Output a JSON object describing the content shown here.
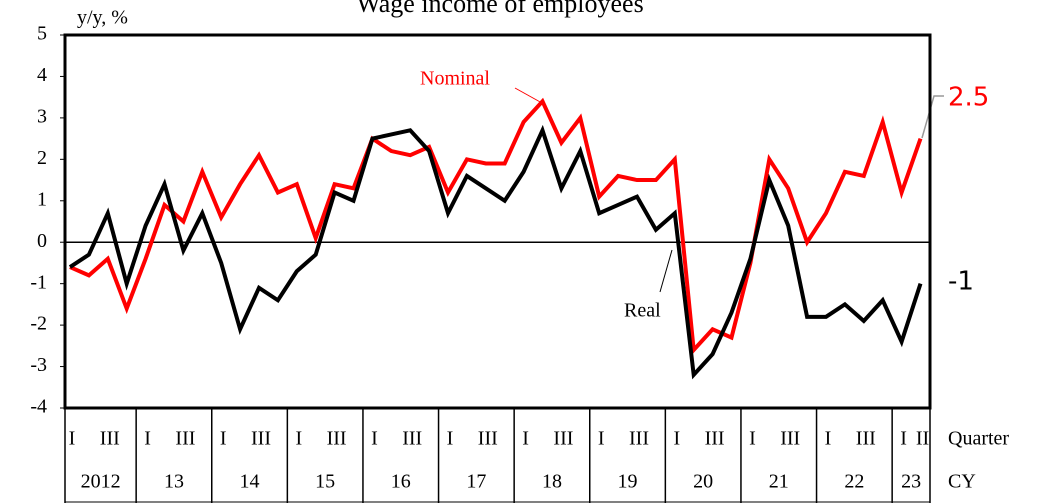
{
  "chart_data": {
    "type": "line",
    "title": "Wage income of employees",
    "y_label": "y/y, %",
    "categories": [
      "I",
      null,
      "III",
      null,
      "I",
      null,
      "III",
      null,
      "I",
      null,
      "III",
      null,
      "I",
      null,
      "III",
      null,
      "I",
      null,
      "III",
      null,
      "I",
      null,
      "III",
      null,
      "I",
      null,
      "III",
      null,
      "I",
      null,
      "III",
      null,
      "I",
      null,
      "III",
      null,
      "I",
      null,
      "III",
      null,
      "I",
      null,
      "III",
      null,
      "I",
      "II"
    ],
    "years": [
      "2012",
      "13",
      "14",
      "15",
      "16",
      "17",
      "18",
      "19",
      "20",
      "21",
      "22",
      "23"
    ],
    "x_label": "Quarter",
    "year_label": "CY",
    "series": [
      {
        "name": "Nominal",
        "color": "#ff0000",
        "values": [
          -0.6,
          -0.8,
          -0.4,
          -1.6,
          -0.4,
          0.9,
          0.5,
          1.7,
          0.6,
          1.4,
          2.1,
          1.2,
          1.4,
          0.1,
          1.4,
          1.3,
          2.5,
          2.2,
          2.1,
          2.3,
          1.2,
          2.0,
          1.9,
          1.9,
          2.9,
          3.4,
          2.4,
          3.0,
          1.1,
          1.6,
          1.5,
          1.5,
          2.0,
          -2.6,
          -2.1,
          -2.3,
          -0.5,
          2.0,
          1.3,
          0.0,
          0.7,
          1.7,
          1.6,
          2.9,
          1.2,
          2.5
        ]
      },
      {
        "name": "Real",
        "color": "#000000",
        "values": [
          -0.6,
          -0.3,
          0.7,
          -1.0,
          0.4,
          1.4,
          -0.2,
          0.7,
          -0.5,
          -2.1,
          -1.1,
          -1.4,
          -0.7,
          -0.3,
          1.2,
          1.0,
          2.5,
          2.6,
          2.7,
          2.2,
          0.7,
          1.6,
          1.3,
          1.0,
          1.7,
          2.7,
          1.3,
          2.2,
          0.7,
          0.9,
          1.1,
          0.3,
          0.7,
          -3.2,
          -2.7,
          -1.7,
          -0.4,
          1.5,
          0.4,
          -1.8,
          -1.8,
          -1.5,
          -1.9,
          -1.4,
          -2.4,
          -1.0
        ]
      }
    ],
    "ylim": [
      -4,
      5
    ],
    "yticks": [
      -4,
      -3,
      -2,
      -1,
      0,
      1,
      2,
      3,
      4,
      5
    ]
  }
}
